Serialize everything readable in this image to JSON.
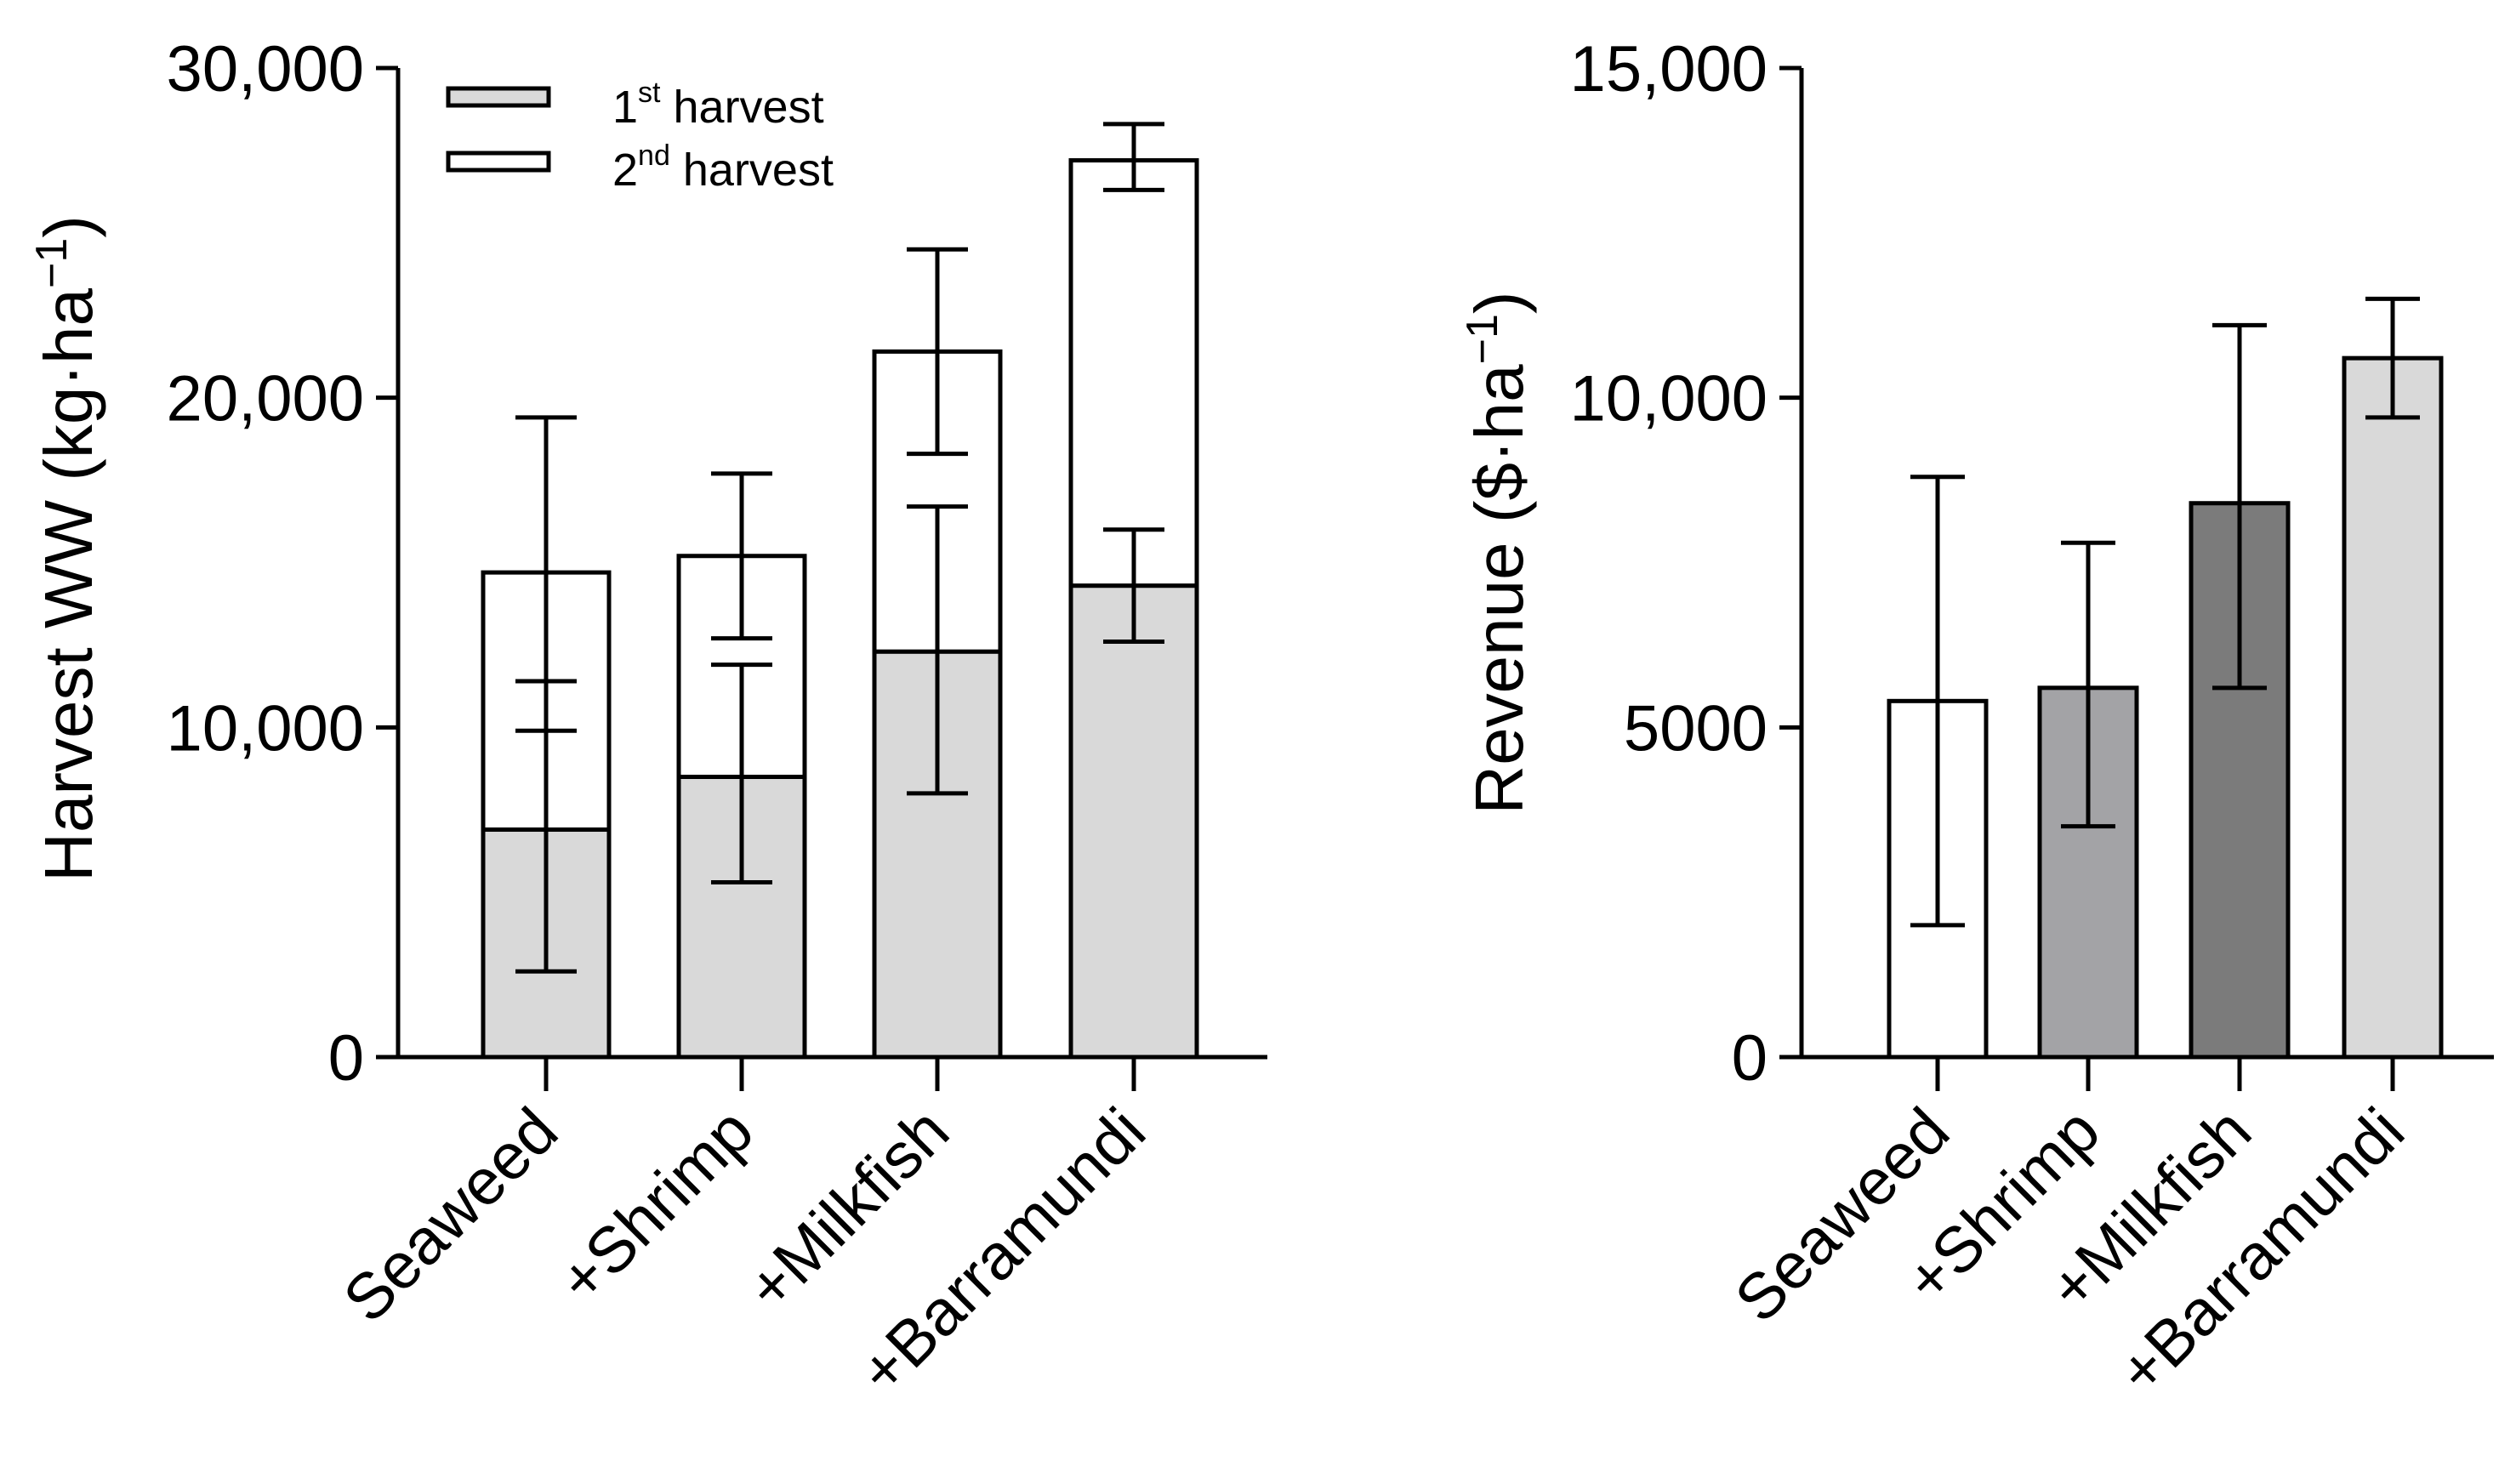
{
  "chart_data": [
    {
      "type": "bar",
      "stacked": true,
      "categories": [
        "Seaweed",
        "+Shrimp",
        "+Milkfish",
        "+Barramundi"
      ],
      "ylabel": "Harvest WW (kg·ha",
      "ylabel_sup": "−1",
      "ylabel_close": ")",
      "ylim": [
        0,
        30000
      ],
      "yticks": [
        0,
        10000,
        20000,
        30000
      ],
      "ytick_labels": [
        "0",
        "10,000",
        "20,000",
        "30,000"
      ],
      "legend_position": "top-left",
      "series": [
        {
          "name": "1st harvest",
          "legend_main": "1",
          "legend_sup": "st",
          "legend_rest": " harvest",
          "color": "#d9d9d9",
          "values": [
            6900,
            8500,
            12300,
            14300
          ],
          "err_low": [
            2600,
            5300,
            8000,
            12600
          ],
          "err_high": [
            11400,
            11900,
            16700,
            16000
          ]
        },
        {
          "name": "2nd harvest",
          "legend_main": "2",
          "legend_sup": "nd",
          "legend_rest": " harvest",
          "color": "#ffffff",
          "values": [
            7800,
            6700,
            9100,
            12900
          ],
          "err_low": [
            9900,
            12700,
            18300,
            26300
          ],
          "err_high": [
            19400,
            17700,
            24500,
            28300
          ]
        }
      ]
    },
    {
      "type": "bar",
      "categories": [
        "Seaweed",
        "+Shrimp",
        "+Milkfish",
        "+Barramundi"
      ],
      "ylabel": "Revenue ($·ha",
      "ylabel_sup": "−1",
      "ylabel_close": ")",
      "ylim": [
        0,
        15000
      ],
      "yticks": [
        0,
        5000,
        10000,
        15000
      ],
      "ytick_labels": [
        "0",
        "5000",
        "10,000",
        "15,000"
      ],
      "colors": [
        "#ffffff",
        "#a3a3a6",
        "#7b7b7b",
        "#d9d9d9"
      ],
      "values": [
        5400,
        5600,
        8400,
        10600
      ],
      "err_low": [
        2000,
        3500,
        5600,
        9700
      ],
      "err_high": [
        8800,
        7800,
        11100,
        11500
      ]
    }
  ]
}
